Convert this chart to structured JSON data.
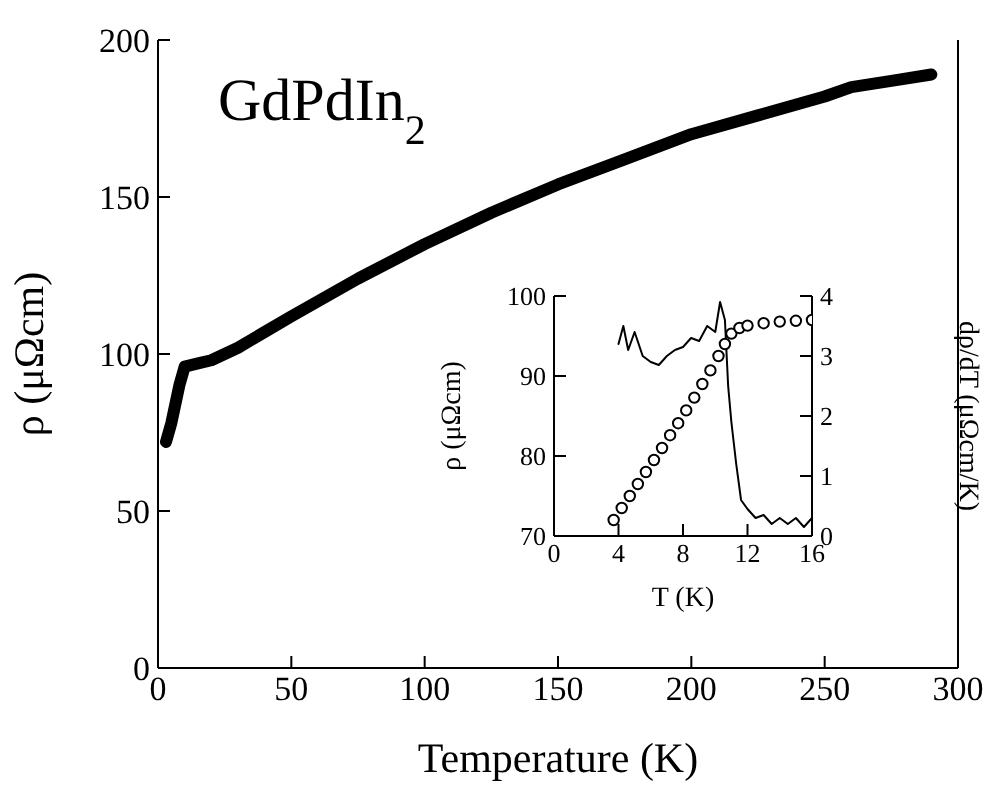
{
  "chart_data": [
    {
      "type": "line",
      "xlabel": "Temperature (K)",
      "ylabel": "ρ (μΩcm)",
      "annotations": [
        "GdPdIn$_{2}$"
      ],
      "xlim": [
        0,
        300
      ],
      "xticks": [
        0,
        50,
        100,
        150,
        200,
        250,
        300
      ],
      "ylim": [
        0,
        200
      ],
      "yticks": [
        0,
        50,
        100,
        150,
        200
      ],
      "grid": false,
      "marker": "none",
      "line_style": "solid",
      "series": [
        {
          "color": "#000000",
          "x": [
            3,
            5,
            8,
            10,
            15,
            20,
            30,
            40,
            50,
            75,
            100,
            125,
            150,
            175,
            200,
            225,
            250,
            260,
            275,
            290
          ],
          "values": [
            72,
            78,
            90,
            96,
            97,
            98,
            102,
            107,
            112,
            124,
            135,
            145,
            154,
            162,
            170,
            176,
            182,
            185,
            187,
            189
          ]
        }
      ]
    },
    {
      "type": "scatter",
      "xlabel": "T (K)",
      "ylabel": "ρ (μΩcm)",
      "y2label": "dρ/dT (μΩcm/K)",
      "xlim": [
        0,
        16
      ],
      "xticks": [
        0,
        4,
        8,
        12,
        16
      ],
      "ylim": [
        70,
        100
      ],
      "yticks": [
        70,
        80,
        90,
        100
      ],
      "y2lim": [
        0,
        4
      ],
      "y2ticks": [
        0,
        1,
        2,
        3,
        4
      ],
      "grid": false,
      "series": [
        {
          "marker": "circle",
          "color": "#000000",
          "x": [
            3.7,
            4.2,
            4.7,
            5.2,
            5.7,
            6.2,
            6.7,
            7.2,
            7.7,
            8.2,
            8.7,
            9.2,
            9.7,
            10.2,
            10.6,
            11,
            11.5,
            12,
            13,
            14,
            15,
            16
          ],
          "values": [
            72,
            73.5,
            75,
            76.5,
            78,
            79.5,
            81,
            82.6,
            84.1,
            85.7,
            87.3,
            89,
            90.7,
            92.5,
            94,
            95.3,
            96,
            96.3,
            96.6,
            96.8,
            96.9,
            97
          ]
        },
        {
          "type": "line",
          "axis": "y2",
          "marker": "none",
          "line_style": "solid",
          "color": "#000000",
          "x": [
            4,
            4.3,
            4.6,
            5,
            5.5,
            6,
            6.5,
            7,
            7.5,
            8,
            8.5,
            9,
            9.5,
            10,
            10.3,
            10.6,
            10.8,
            11,
            11.3,
            11.6,
            12,
            12.5,
            13,
            13.5,
            14,
            14.5,
            15,
            15.5,
            16
          ],
          "values": [
            3.2,
            3.5,
            3.1,
            3.4,
            3,
            2.9,
            2.85,
            3,
            3.1,
            3.15,
            3.3,
            3.25,
            3.5,
            3.4,
            3.9,
            3.6,
            2.5,
            1.9,
            1.2,
            0.6,
            0.45,
            0.3,
            0.35,
            0.2,
            0.3,
            0.2,
            0.3,
            0.15,
            0.3
          ]
        }
      ]
    }
  ]
}
